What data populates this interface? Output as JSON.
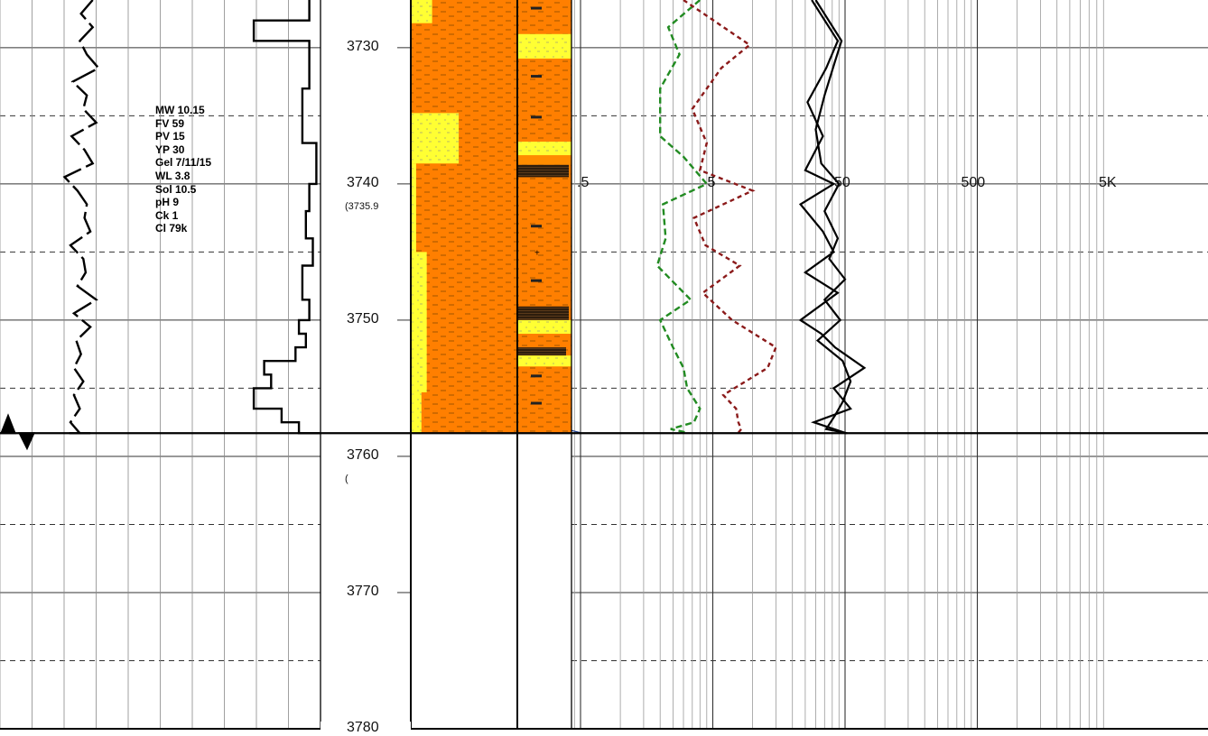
{
  "chart_data": {
    "type": "line",
    "title": "",
    "depth_axis": {
      "ylim": [
        3726.5,
        3780
      ],
      "ticks": [
        3730,
        3740,
        3750,
        3760,
        3770,
        3780
      ],
      "grid": true
    },
    "data_end_depth": 3758.3,
    "resistivity_scale": {
      "log": true,
      "ticks": [
        ".5",
        "5",
        "50",
        "500",
        "5K"
      ]
    },
    "depth_annotations": [
      "(3735.9",
      "("
    ],
    "mud_properties": [
      "MW 10.15",
      "FV 59",
      "PV 15",
      "YP 30",
      "Gel 7/11/15",
      "WL 3.8",
      "Sol 10.5",
      "pH 9",
      "Ck 1",
      "Cl 79k"
    ],
    "series": [
      {
        "track": 1,
        "color": "#000000",
        "x": [
          0.79,
          0.69,
          0.79,
          0.68,
          0.74,
          0.84,
          0.62,
          0.74,
          0.71,
          0.82,
          0.61,
          0.72,
          0.79,
          0.55,
          0.66,
          0.74,
          0.72,
          0.77,
          0.6,
          0.71,
          0.73,
          0.66,
          0.82,
          0.63,
          0.77,
          0.65,
          0.69,
          0.63,
          0.71,
          0.63,
          0.68,
          0.6,
          0.68,
          0.75,
          0.64,
          0.75,
          0.71,
          0.75,
          0.77,
          0.59,
          0.71
        ],
        "y": [
          3726.5,
          3727.5,
          3728.5,
          3729.5,
          3730.5,
          3731.5,
          3732.5,
          3733.5,
          3734.5,
          3735.5,
          3736.5,
          3737.5,
          3738.5,
          3739.5,
          3740.5,
          3741.5,
          3742.5,
          3743.5,
          3744.5,
          3745.5,
          3746.5,
          3747.5,
          3748.5,
          3749.5,
          3750.5,
          3751.5,
          3752.5,
          3753.5,
          3754.5,
          3755.5,
          3756.5,
          3757.5,
          3758.3,
          3758.3,
          3758.3,
          3758.3,
          3758.3,
          3758.3,
          3758.3,
          3758.3,
          3758.3
        ]
      },
      {
        "track": 2,
        "color": "#000000",
        "x": [
          0.89,
          0.89,
          0.73,
          0.73,
          0.89,
          0.89,
          0.87,
          0.87,
          0.91,
          0.91,
          0.89,
          0.89,
          0.88,
          0.88,
          0.9,
          0.9,
          0.87,
          0.87,
          0.89,
          0.89,
          0.86,
          0.86,
          0.88,
          0.88,
          0.85,
          0.85,
          0.76,
          0.76,
          0.78,
          0.78,
          0.73,
          0.73,
          0.81,
          0.81,
          0.86,
          0.86,
          0.9,
          0.9,
          0.92,
          0.92
        ],
        "y": [
          3726.5,
          3728,
          3728,
          3729.5,
          3729.5,
          3733,
          3733,
          3737,
          3737,
          3740,
          3740,
          3742,
          3742,
          3744,
          3744,
          3746,
          3746,
          3748.5,
          3748.5,
          3750,
          3750,
          3751,
          3751,
          3752,
          3752,
          3753,
          3753,
          3754,
          3754,
          3755,
          3755,
          3756.5,
          3756.5,
          3757.5,
          3757.5,
          3758.3,
          3758.3,
          3758.3,
          3758.3,
          3758.3
        ]
      },
      {
        "track": 4,
        "color": "#228B22",
        "dash": "dashed",
        "x": [
          4.0,
          2.3,
          2.8,
          2.0,
          2.0,
          3.0,
          4.5,
          2.1,
          2.2,
          1.9,
          3.4,
          2.0,
          2.5,
          3.0,
          3.2,
          4.0,
          3.6,
          2.4,
          3.0,
          3.2
        ],
        "y": [
          3726.5,
          3728.5,
          3730.5,
          3733,
          3736.5,
          3738,
          3740,
          3741.5,
          3744,
          3746,
          3748.5,
          3750,
          3752,
          3753.5,
          3755,
          3756.5,
          3757.5,
          3758,
          3758.2,
          3758.3
        ]
      },
      {
        "track": 4,
        "color": "#8B1A1A",
        "dash": "dashed",
        "x": [
          3.0,
          9.5,
          5.8,
          3.5,
          4.5,
          4.0,
          10.0,
          3.6,
          4.4,
          8.0,
          4.2,
          7.0,
          15.0,
          13.0,
          6.0,
          7.5,
          7.8,
          8.2,
          7.9,
          8.1
        ],
        "y": [
          3726.5,
          3729.8,
          3731.5,
          3734.5,
          3737,
          3739,
          3740.5,
          3742.5,
          3744.5,
          3746,
          3748,
          3750,
          3752,
          3753.5,
          3755.5,
          3756.5,
          3757.5,
          3758,
          3758.2,
          3758.3
        ]
      },
      {
        "track": 4,
        "color": "#000000",
        "x": [
          28.0,
          44.0,
          36.0,
          26.0,
          34.0,
          25.0,
          41.0,
          23.0,
          34.0,
          41.0,
          25.0,
          44.0,
          23.0,
          33.0,
          42.0,
          70.0,
          41.0,
          55.0,
          29.0,
          51.0
        ],
        "y": [
          3726.5,
          3729.5,
          3731.5,
          3734,
          3736.5,
          3739,
          3740,
          3741.5,
          3743.5,
          3745,
          3746.5,
          3748,
          3750,
          3751,
          3752,
          3753.5,
          3755,
          3756.5,
          3757.5,
          3758.3
        ]
      },
      {
        "track": 4,
        "color": "#000000",
        "x": [
          30.0,
          47.0,
          42.0,
          35.0,
          30.0,
          33.0,
          45.0,
          35.0,
          44.0,
          38.0,
          50.0,
          35.0,
          46.0,
          31.0,
          48.0,
          55.0,
          48.0,
          42.0,
          36.0,
          52.0
        ],
        "y": [
          3726.5,
          3729.5,
          3731,
          3733.5,
          3736,
          3738.5,
          3740,
          3742,
          3744,
          3745.5,
          3747,
          3748.5,
          3750,
          3751.5,
          3753,
          3754.5,
          3756,
          3757,
          3758,
          3758.3
        ]
      }
    ],
    "lithology_columns": [
      {
        "name": "",
        "layers": [
          {
            "top": 3726.5,
            "base": 3728.2,
            "lith": "sandstone",
            "color": "#FFFF33",
            "fraction": 0.2
          },
          {
            "top": 3734.8,
            "base": 3738.5,
            "lith": "sandstone",
            "color": "#FFFF33",
            "fraction": 0.45
          },
          {
            "top": 3738.5,
            "base": 3745.0,
            "lith": "sandstone",
            "color": "#FFFF33",
            "fraction": 0.05
          },
          {
            "top": 3745.0,
            "base": 3755.3,
            "lith": "sandstone",
            "color": "#FFFF33",
            "fraction": 0.15
          },
          {
            "top": 3755.3,
            "base": 3758.3,
            "lith": "sandstone",
            "color": "#FFFF33",
            "fraction": 0.1
          }
        ]
      },
      {
        "name": "",
        "layers": [
          {
            "top": 3729.0,
            "base": 3730.8,
            "lith": "sandstone",
            "color": "#FFFF33",
            "fraction": 1.0
          },
          {
            "top": 3736.9,
            "base": 3737.9,
            "lith": "sandstone",
            "color": "#FFFF33",
            "fraction": 1.0
          },
          {
            "top": 3737.9,
            "base": 3738.6,
            "lith": "limestone",
            "color": "#FF8C00",
            "fraction": 1.0
          },
          {
            "top": 3738.6,
            "base": 3739.5,
            "lith": "coal",
            "color": "#3a2a1a",
            "fraction": 0.95
          },
          {
            "top": 3749.0,
            "base": 3750.0,
            "lith": "coal",
            "color": "#3a2a1a",
            "fraction": 0.95
          },
          {
            "top": 3750.0,
            "base": 3751.0,
            "lith": "sandstone",
            "color": "#FFFF33",
            "fraction": 1.0
          },
          {
            "top": 3752.0,
            "base": 3752.6,
            "lith": "coal",
            "color": "#3a2a1a",
            "fraction": 0.9
          },
          {
            "top": 3752.6,
            "base": 3753.4,
            "lith": "sandstone",
            "color": "#FFFF33",
            "fraction": 1.0
          }
        ]
      }
    ]
  }
}
